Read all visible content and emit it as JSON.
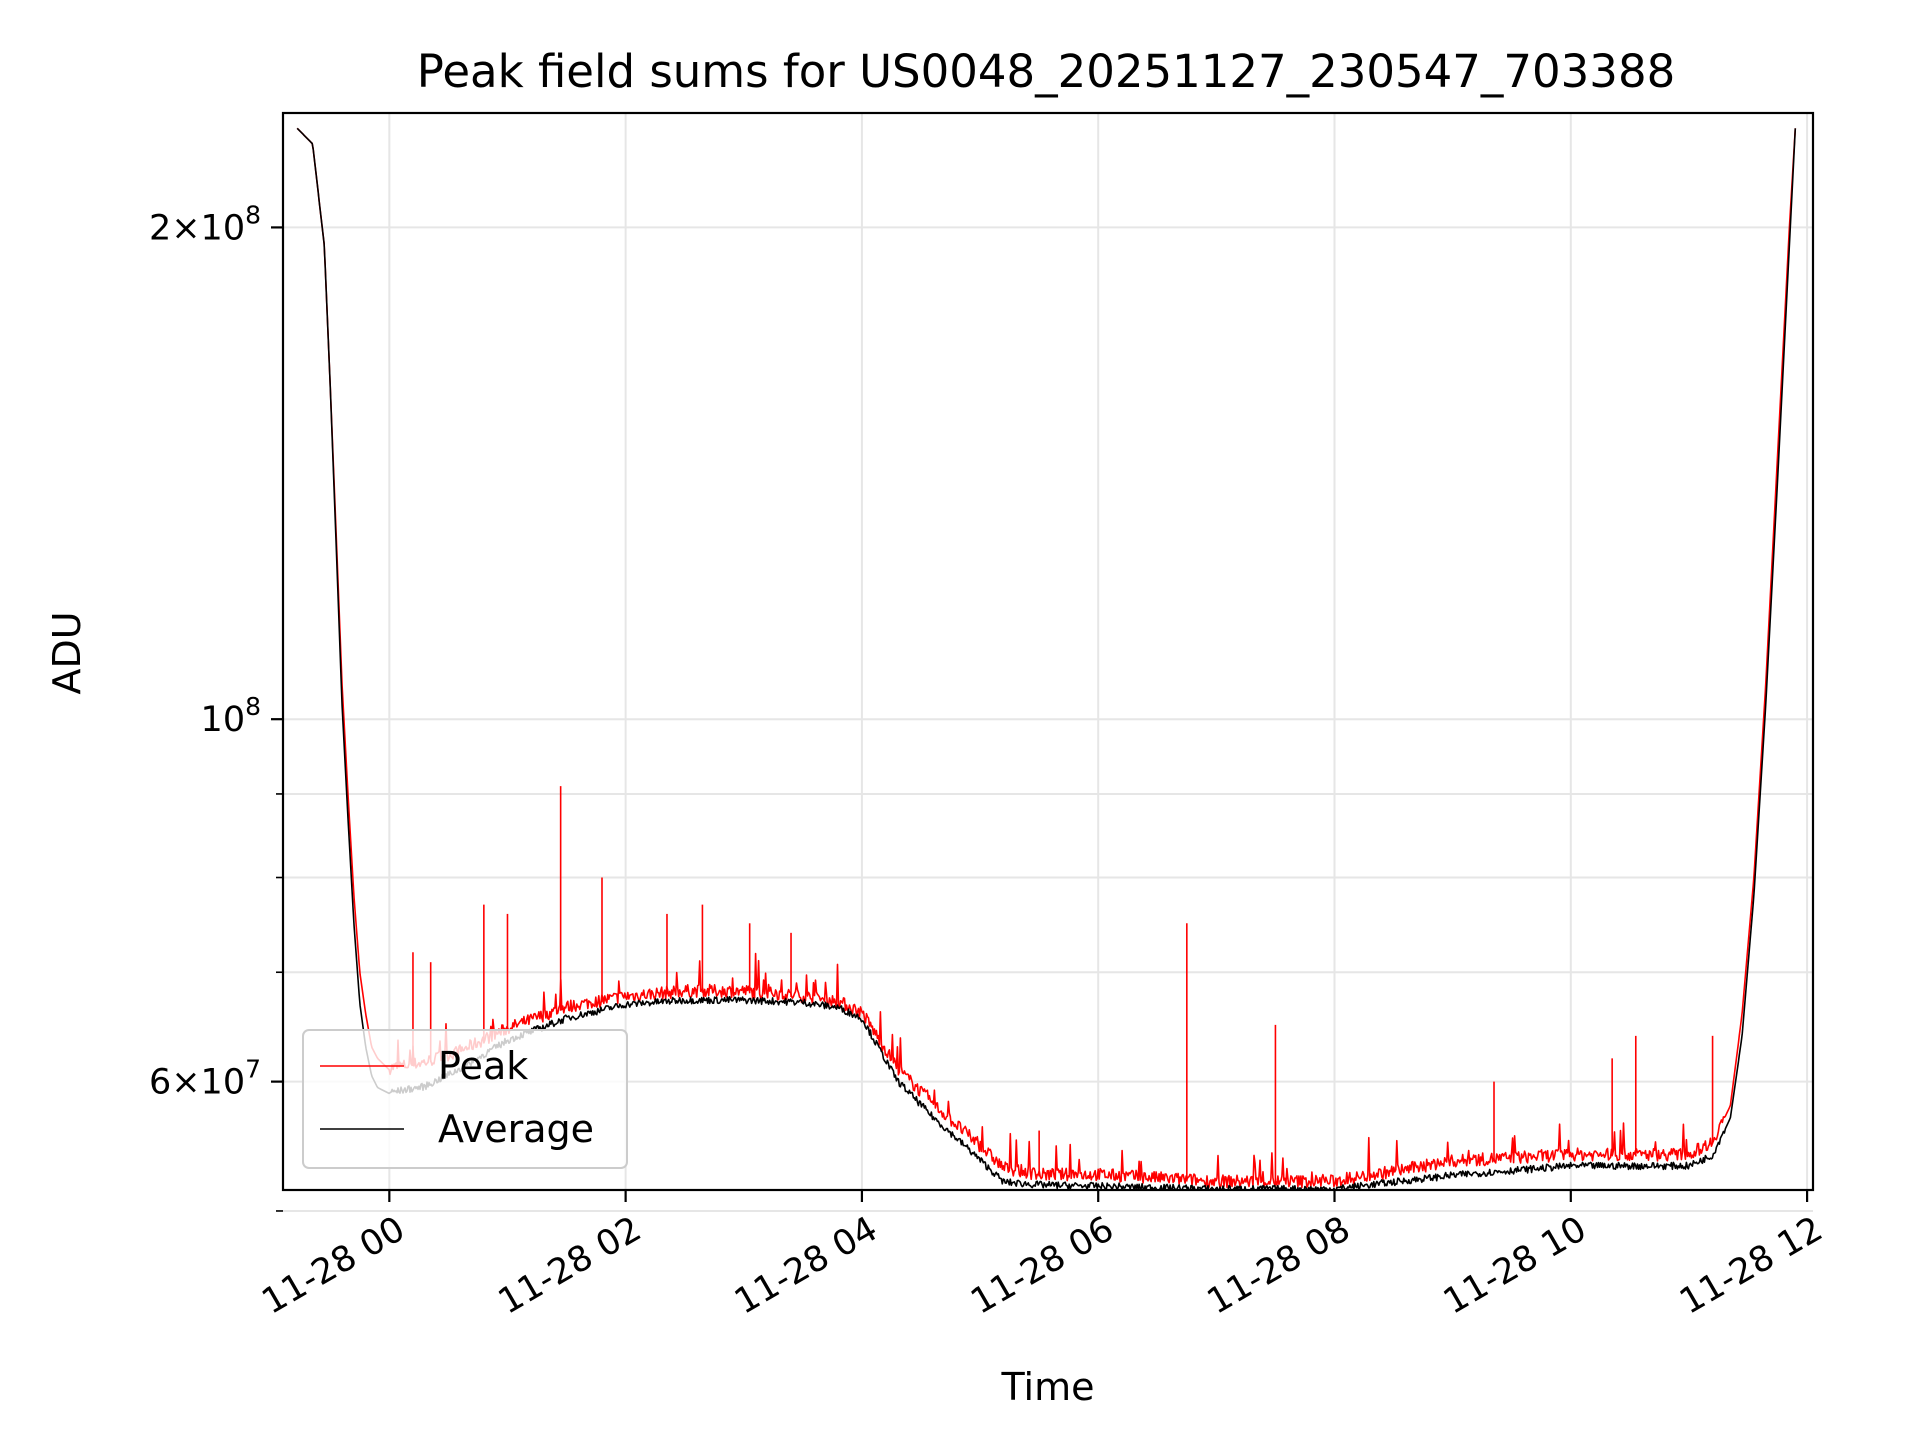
{
  "chart_data": {
    "type": "line",
    "title": "Peak field sums for US0048_20251127_230547_703388",
    "xlabel": "Time",
    "ylabel": "ADU",
    "yscale": "log",
    "xlim_hours": [
      -0.9,
      12.05
    ],
    "ylim": [
      51500000,
      235000000
    ],
    "grid": true,
    "legend_position": "lower-left",
    "x_ticks": [
      {
        "hours": 0,
        "label": "11-28 00"
      },
      {
        "hours": 2,
        "label": "11-28 02"
      },
      {
        "hours": 4,
        "label": "11-28 04"
      },
      {
        "hours": 6,
        "label": "11-28 06"
      },
      {
        "hours": 8,
        "label": "11-28 08"
      },
      {
        "hours": 10,
        "label": "11-28 10"
      },
      {
        "hours": 12,
        "label": "11-28 12"
      }
    ],
    "y_major_ticks": [
      {
        "value": 60000000,
        "base": "6×10",
        "exp": "7"
      },
      {
        "value": 100000000,
        "base": "10",
        "exp": "8"
      },
      {
        "value": 200000000,
        "base": "2×10",
        "exp": "8"
      }
    ],
    "y_minor_ticks": [
      50000000,
      70000000,
      80000000,
      90000000
    ],
    "series": [
      {
        "name": "Peak",
        "color": "#ff0000",
        "x_hours": [
          -0.78,
          -0.65,
          -0.55,
          -0.5,
          -0.45,
          -0.4,
          -0.35,
          -0.3,
          -0.25,
          -0.2,
          -0.15,
          -0.1,
          0.0,
          0.3,
          0.6,
          1.0,
          1.5,
          2.0,
          2.5,
          3.0,
          3.5,
          3.8,
          4.0,
          4.3,
          4.6,
          4.9,
          5.2,
          5.5,
          6.0,
          7.0,
          8.0,
          9.0,
          10.0,
          10.5,
          11.0,
          11.2,
          11.35,
          11.45,
          11.55,
          11.65,
          11.75,
          11.85,
          11.9
        ],
        "y": [
          230000000,
          225000000,
          195000000,
          160000000,
          130000000,
          105000000,
          90000000,
          78000000,
          70000000,
          66000000,
          63000000,
          62000000,
          61000000,
          61500000,
          62500000,
          64500000,
          66500000,
          67500000,
          68000000,
          68000000,
          67500000,
          67000000,
          66000000,
          61000000,
          58000000,
          55500000,
          53000000,
          52500000,
          52500000,
          52000000,
          52000000,
          53500000,
          54000000,
          54000000,
          54000000,
          55000000,
          58000000,
          66000000,
          80000000,
          105000000,
          145000000,
          200000000,
          230000000
        ],
        "spikes": [
          [
            0.2,
            72000000
          ],
          [
            0.35,
            71000000
          ],
          [
            0.8,
            77000000
          ],
          [
            1.0,
            76000000
          ],
          [
            1.45,
            91000000
          ],
          [
            1.8,
            80000000
          ],
          [
            2.35,
            76000000
          ],
          [
            2.65,
            77000000
          ],
          [
            3.05,
            75000000
          ],
          [
            3.4,
            74000000
          ],
          [
            5.5,
            56000000
          ],
          [
            6.75,
            75000000
          ],
          [
            7.5,
            65000000
          ],
          [
            9.35,
            60000000
          ],
          [
            10.35,
            62000000
          ],
          [
            10.55,
            64000000
          ],
          [
            11.2,
            64000000
          ]
        ]
      },
      {
        "name": "Average",
        "color": "#000000",
        "x_hours": [
          -0.78,
          -0.65,
          -0.55,
          -0.5,
          -0.45,
          -0.4,
          -0.35,
          -0.3,
          -0.25,
          -0.2,
          -0.15,
          -0.1,
          0.0,
          0.3,
          0.6,
          1.0,
          1.5,
          2.0,
          2.5,
          3.0,
          3.5,
          3.8,
          4.0,
          4.3,
          4.6,
          4.9,
          5.2,
          5.5,
          6.0,
          7.0,
          8.0,
          9.0,
          10.0,
          10.5,
          11.0,
          11.2,
          11.35,
          11.45,
          11.55,
          11.65,
          11.75,
          11.85,
          11.9
        ],
        "y": [
          230000000,
          225000000,
          195000000,
          160000000,
          128000000,
          102000000,
          87000000,
          75000000,
          67000000,
          63000000,
          60500000,
          59500000,
          59000000,
          59500000,
          61000000,
          63500000,
          65500000,
          66800000,
          67200000,
          67200000,
          67000000,
          66500000,
          65500000,
          60000000,
          57000000,
          54500000,
          52000000,
          51800000,
          51700000,
          51500000,
          51500000,
          52500000,
          53200000,
          53200000,
          53200000,
          54000000,
          57000000,
          64000000,
          78000000,
          102000000,
          140000000,
          195000000,
          230000000
        ]
      }
    ]
  }
}
